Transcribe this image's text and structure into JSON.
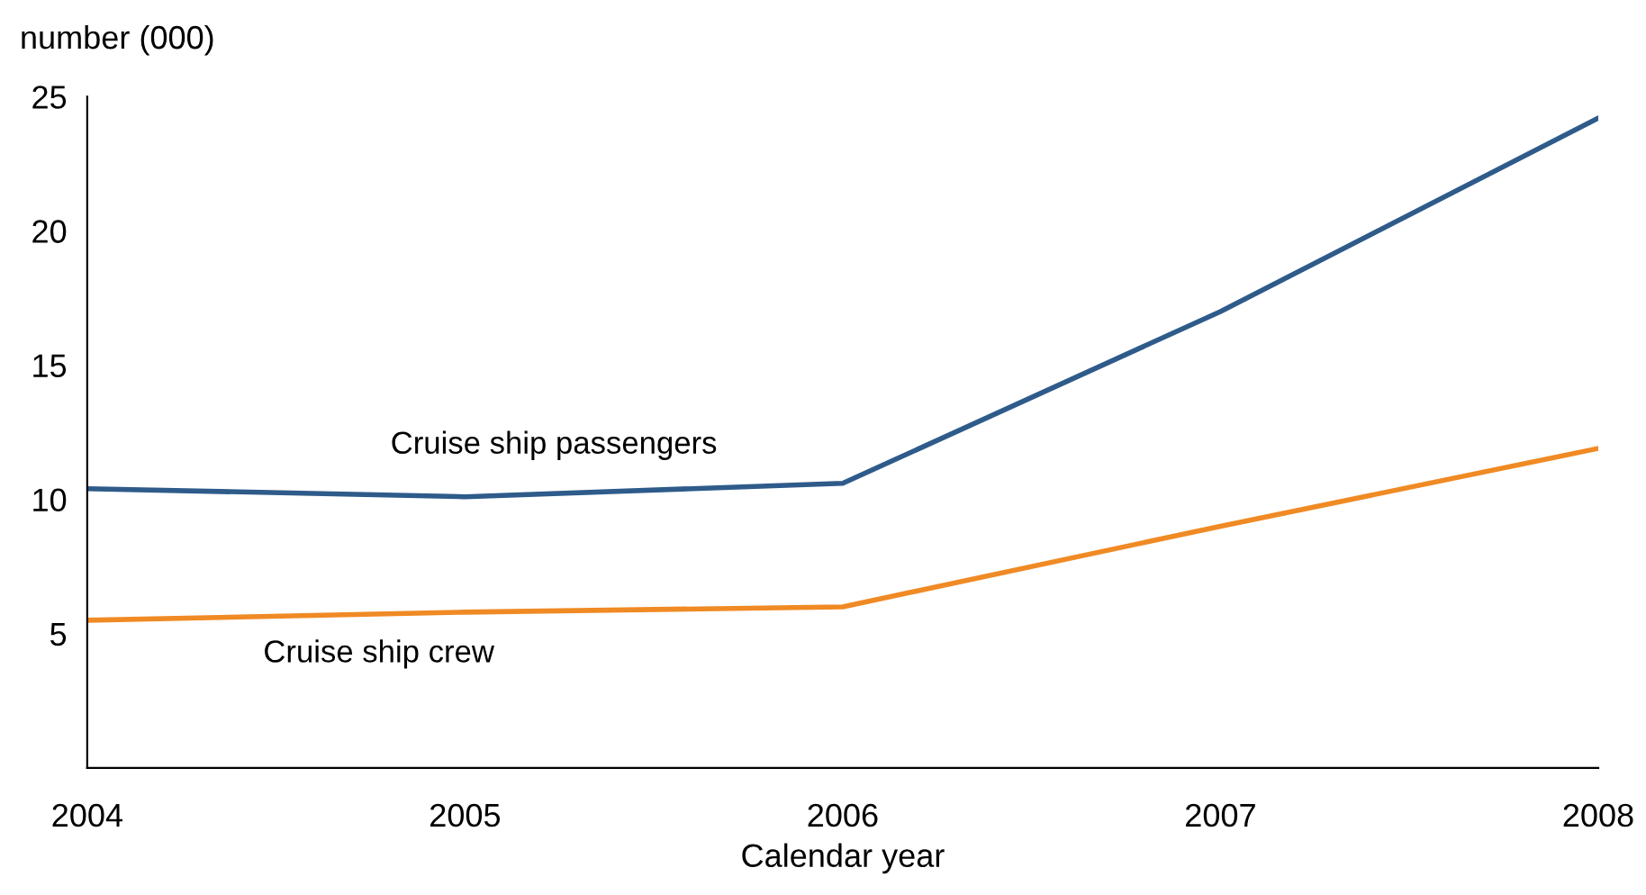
{
  "chart_data": {
    "type": "line",
    "xlabel": "Calendar year",
    "ylabel": "number (000)",
    "x": [
      2004,
      2005,
      2006,
      2007,
      2008
    ],
    "series": [
      {
        "name": "Cruise ship passengers",
        "color": "#2e5b8a",
        "values": [
          10.4,
          10.1,
          10.6,
          17.0,
          24.2
        ]
      },
      {
        "name": "Cruise ship crew",
        "color": "#f08a24",
        "values": [
          5.5,
          5.8,
          6.0,
          9.0,
          11.9
        ]
      }
    ],
    "xlim": [
      2004,
      2008
    ],
    "xticks": [
      2004,
      2005,
      2006,
      2007,
      2008
    ],
    "ylim": [
      0,
      25
    ],
    "yticks": [
      5,
      10,
      15,
      20,
      25
    ],
    "grid": false,
    "legend": false,
    "marker": "none",
    "line_style": "solid"
  }
}
